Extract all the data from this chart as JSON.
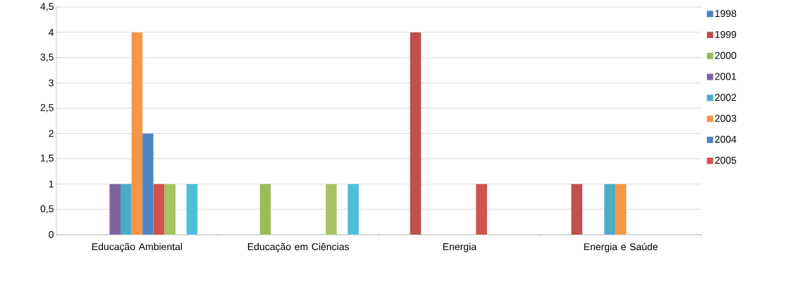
{
  "chart_data": {
    "type": "bar",
    "categories": [
      "Educação Ambiental",
      "Educação em Ciências",
      "Energia",
      "Energia e Saúde"
    ],
    "series": [
      {
        "name": "1998",
        "color": "#4f81bd",
        "values": [
          null,
          null,
          null,
          null
        ]
      },
      {
        "name": "1999",
        "color": "#c0504d",
        "values": [
          null,
          null,
          4,
          1
        ]
      },
      {
        "name": "2000",
        "color": "#9bbb59",
        "values": [
          null,
          1,
          null,
          null
        ]
      },
      {
        "name": "2001",
        "color": "#8064a2",
        "values": [
          1,
          null,
          null,
          null
        ]
      },
      {
        "name": "2002",
        "color": "#4bacc6",
        "values": [
          1,
          null,
          null,
          1
        ]
      },
      {
        "name": "2003",
        "color": "#f79646",
        "values": [
          4,
          null,
          null,
          1
        ]
      },
      {
        "name": "2004",
        "color": "#4f86c6",
        "values": [
          2,
          null,
          null,
          null
        ]
      },
      {
        "name": "2005",
        "color": "#d0534f",
        "values": [
          1,
          null,
          1,
          null
        ]
      },
      {
        "color": "#a5c560",
        "values": [
          1,
          1,
          null,
          null
        ]
      },
      {
        "values": [
          null,
          null,
          null,
          null
        ]
      },
      {
        "color": "#4fbfd6",
        "values": [
          1,
          1,
          null,
          null
        ]
      }
    ],
    "ylim": [
      0,
      4.5
    ],
    "yticks": [
      0,
      {
        "value": 0.5,
        "label": "0,5"
      },
      1,
      {
        "value": 1.5,
        "label": "1,5"
      },
      2,
      {
        "value": 2.5,
        "label": "2,5"
      },
      3,
      {
        "value": 3.5,
        "label": "3,5"
      },
      4,
      {
        "value": 4.5,
        "label": "4,5"
      }
    ],
    "grid": "y",
    "legend": "right"
  }
}
